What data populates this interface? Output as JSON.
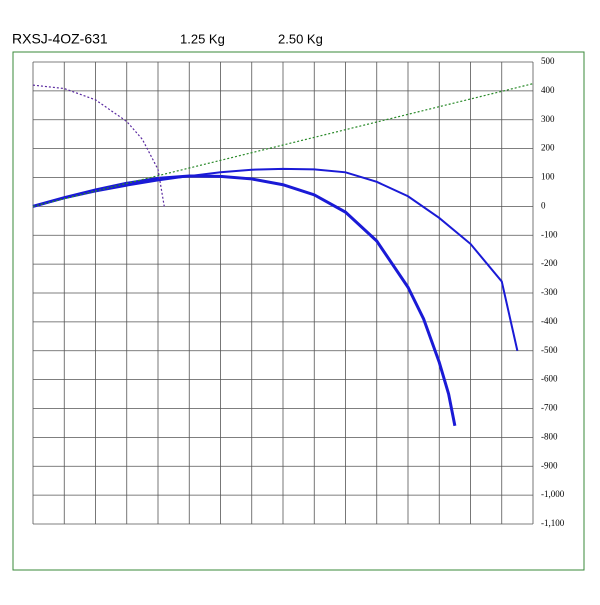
{
  "header": {
    "model": "RXSJ-4OZ-631",
    "weight_1": "1.25 Kg",
    "weight_2": "2.50 Kg"
  },
  "chart_data": {
    "type": "line",
    "xlim": [
      0,
      16
    ],
    "xticks": [
      0,
      1,
      2,
      3,
      4,
      5,
      6,
      7,
      8,
      9,
      10,
      11,
      12,
      13,
      14,
      15,
      16
    ],
    "xtick_labels": false,
    "ylim": [
      -1100,
      500
    ],
    "yticks": [
      500,
      400,
      300,
      200,
      100,
      0,
      -100,
      -200,
      -300,
      -400,
      -500,
      -600,
      -700,
      -800,
      -900,
      {
        "value": -1000,
        "label": "-1,000"
      },
      {
        "value": -1100,
        "label": "-1,100"
      }
    ],
    "y_axis_side": "right",
    "grid": true,
    "series": [
      {
        "color": "#1a1ad6",
        "width": 3,
        "dashed": false,
        "x": [
          0,
          1,
          2,
          3,
          4,
          5,
          6,
          7,
          8,
          9,
          10,
          11,
          12,
          12.5,
          13,
          13.3,
          13.5
        ],
        "values": [
          0,
          30,
          57,
          80,
          97,
          105,
          104,
          95,
          75,
          40,
          -20,
          -120,
          -280,
          -390,
          -540,
          -650,
          -760
        ]
      },
      {
        "color": "#1a1ad6",
        "width": 2,
        "dashed": false,
        "x": [
          0,
          1,
          2,
          3,
          4,
          5,
          6,
          7,
          8,
          9,
          10,
          11,
          12,
          13,
          14,
          15,
          15.5
        ],
        "values": [
          0,
          28,
          52,
          72,
          90,
          105,
          118,
          127,
          130,
          128,
          118,
          85,
          35,
          -40,
          -130,
          -260,
          -500
        ]
      },
      {
        "color": "#2a8a2a",
        "width": 1.2,
        "dashed": true,
        "x": [
          0,
          16
        ],
        "values": [
          0,
          425
        ]
      },
      {
        "color": "#5a2aa0",
        "width": 1.2,
        "dashed": true,
        "x": [
          0,
          1,
          2,
          3,
          3.5,
          4,
          4.2
        ],
        "values": [
          420,
          408,
          369,
          294,
          232,
          128,
          0
        ]
      }
    ]
  }
}
